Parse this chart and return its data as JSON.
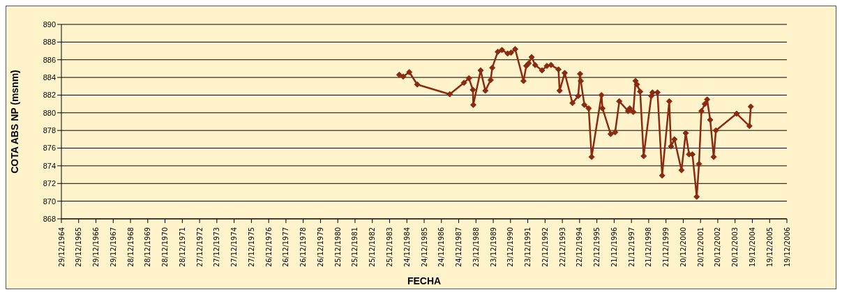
{
  "chart_data": {
    "type": "line",
    "xlabel": "FECHA",
    "ylabel": "COTA ABS NP (msnm)",
    "x": [
      "1984-07-16",
      "1984-10-08",
      "1985-02-14",
      "1985-07-31",
      "1987-06-18",
      "1988-04-13",
      "1988-07-27",
      "1988-10-19",
      "1988-10-27",
      "1989-04-01",
      "1989-07-09",
      "1989-10-30",
      "1989-12-02",
      "1990-03-29",
      "1990-06-25",
      "1990-10-23",
      "1991-01-04",
      "1991-04-01",
      "1991-09-24",
      "1991-11-21",
      "1992-01-11",
      "1992-03-14",
      "1992-05-26",
      "1992-10-19",
      "1993-01-30",
      "1993-04-28",
      "1993-10-01",
      "1993-10-26",
      "1994-02-10",
      "1994-07-24",
      "1994-11-22",
      "1995-01-01",
      "1995-01-16",
      "1995-04-02",
      "1995-07-02",
      "1995-09-02",
      "1996-03-28",
      "1996-04-19",
      "1996-10-08",
      "1997-01-11",
      "1997-04-09",
      "1997-10-12",
      "1997-11-17",
      "1998-01-30",
      "1998-03-18",
      "1998-04-16",
      "1998-06-24",
      "1998-09-05",
      "1999-02-14",
      "1999-03-11",
      "1999-06-25",
      "1999-10-01",
      "2000-02-28",
      "2000-04-05",
      "2000-06-17",
      "2000-11-13",
      "2001-02-10",
      "2001-04-23",
      "2001-07-02",
      "2001-10-01",
      "2001-11-18",
      "2002-01-08",
      "2002-03-22",
      "2002-05-08",
      "2002-07-13",
      "2002-09-24",
      "2002-11-10",
      "2004-01-22",
      "2004-10-19",
      "2004-11-17"
    ],
    "series": [
      {
        "color": "#8b2a0e",
        "values": [
          884.3,
          884.1,
          884.6,
          883.2,
          882.1,
          883.4,
          883.9,
          882.6,
          880.9,
          884.8,
          882.5,
          883.7,
          885.1,
          886.9,
          887.1,
          886.7,
          886.8,
          887.2,
          883.6,
          885.3,
          885.6,
          886.3,
          885.4,
          884.8,
          885.3,
          885.4,
          884.9,
          882.5,
          884.5,
          881.1,
          881.9,
          884.4,
          883.6,
          880.9,
          880.5,
          875.0,
          882.0,
          880.5,
          877.6,
          877.8,
          881.3,
          880.2,
          880.5,
          880.1,
          883.6,
          883.2,
          882.4,
          875.1,
          881.9,
          882.3,
          882.3,
          872.9,
          881.3,
          876.2,
          877.0,
          873.5,
          877.7,
          875.3,
          875.3,
          870.5,
          874.2,
          880.2,
          881.0,
          881.5,
          879.2,
          875.0,
          878.0,
          879.9,
          878.5,
          880.7
        ]
      }
    ],
    "ylim": [
      868,
      890
    ],
    "yticks": [
      868,
      870,
      872,
      874,
      876,
      878,
      880,
      882,
      884,
      886,
      888,
      890
    ],
    "xlim": [
      "1964-12-29",
      "2006-12-19"
    ],
    "xticks": [
      {
        "value": "1964-12-29",
        "label": "29/12/1964"
      },
      {
        "value": "1965-12-29",
        "label": "29/12/1965"
      },
      {
        "value": "1966-12-29",
        "label": "29/12/1966"
      },
      {
        "value": "1967-12-29",
        "label": "29/12/1967"
      },
      {
        "value": "1968-12-28",
        "label": "28/12/1968"
      },
      {
        "value": "1969-12-28",
        "label": "28/12/1969"
      },
      {
        "value": "1970-12-28",
        "label": "28/12/1970"
      },
      {
        "value": "1971-12-28",
        "label": "28/12/1971"
      },
      {
        "value": "1972-12-27",
        "label": "27/12/1972"
      },
      {
        "value": "1973-12-27",
        "label": "27/12/1973"
      },
      {
        "value": "1974-12-27",
        "label": "27/12/1974"
      },
      {
        "value": "1975-12-27",
        "label": "27/12/1975"
      },
      {
        "value": "1976-12-26",
        "label": "26/12/1976"
      },
      {
        "value": "1977-12-26",
        "label": "26/12/1977"
      },
      {
        "value": "1978-12-26",
        "label": "26/12/1978"
      },
      {
        "value": "1979-12-26",
        "label": "26/12/1979"
      },
      {
        "value": "1980-12-25",
        "label": "25/12/1980"
      },
      {
        "value": "1981-12-25",
        "label": "25/12/1981"
      },
      {
        "value": "1982-12-25",
        "label": "25/12/1982"
      },
      {
        "value": "1983-12-25",
        "label": "25/12/1983"
      },
      {
        "value": "1984-12-24",
        "label": "24/12/1984"
      },
      {
        "value": "1985-12-24",
        "label": "24/12/1985"
      },
      {
        "value": "1986-12-24",
        "label": "24/12/1986"
      },
      {
        "value": "1987-12-24",
        "label": "24/12/1987"
      },
      {
        "value": "1988-12-23",
        "label": "23/12/1988"
      },
      {
        "value": "1989-12-23",
        "label": "23/12/1989"
      },
      {
        "value": "1990-12-23",
        "label": "23/12/1990"
      },
      {
        "value": "1991-12-23",
        "label": "23/12/1991"
      },
      {
        "value": "1992-12-22",
        "label": "22/12/1992"
      },
      {
        "value": "1993-12-22",
        "label": "22/12/1993"
      },
      {
        "value": "1994-12-22",
        "label": "22/12/1994"
      },
      {
        "value": "1995-12-22",
        "label": "22/12/1995"
      },
      {
        "value": "1996-12-21",
        "label": "21/12/1996"
      },
      {
        "value": "1997-12-21",
        "label": "21/12/1997"
      },
      {
        "value": "1998-12-21",
        "label": "21/12/1998"
      },
      {
        "value": "1999-12-21",
        "label": "21/12/1999"
      },
      {
        "value": "2000-12-20",
        "label": "20/12/2000"
      },
      {
        "value": "2001-12-20",
        "label": "20/12/2001"
      },
      {
        "value": "2002-12-20",
        "label": "20/12/2002"
      },
      {
        "value": "2003-12-20",
        "label": "20/12/2003"
      },
      {
        "value": "2004-12-19",
        "label": "19/12/2004"
      },
      {
        "value": "2005-12-19",
        "label": "19/12/2005"
      },
      {
        "value": "2006-12-19",
        "label": "19/12/2006"
      }
    ],
    "grid": "y",
    "marker": "diamond",
    "line_style": "solid"
  }
}
